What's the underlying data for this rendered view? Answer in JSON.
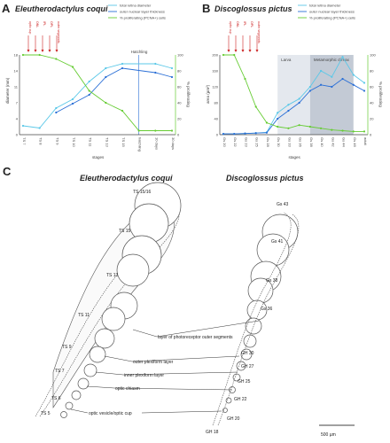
{
  "panels": {
    "a": {
      "letter": "A",
      "title": "Eleutherodactylus coqui"
    },
    "b": {
      "letter": "B",
      "title": "Discoglossus pictus"
    },
    "c": {
      "letter": "C",
      "title_left": "Eleutherodactylus coqui",
      "title_right": "Discoglossus pictus"
    }
  },
  "legend": {
    "items": [
      "total retina diameter",
      "outer nuclear layer thickness",
      "% proliferating (PCNA+) cells"
    ]
  },
  "colors": {
    "cyan": "#5bc8e8",
    "blue": "#2a6fd6",
    "green": "#66cc33",
    "red": "#cc2222",
    "shade1": "#e4e8ee",
    "shade2": "#c3cad5"
  },
  "chart_data": [
    {
      "type": "line",
      "title": "Eleutherodactylus coqui",
      "xlabel": "stages",
      "ylabel": "diameter (mm)",
      "y2label": "% proliferating",
      "ylim": [
        0,
        18
      ],
      "y2lim": [
        0,
        100
      ],
      "categories": [
        "TS 7",
        "TS 8",
        "TS 9",
        "TS 10",
        "TS 11",
        "TS 13",
        "TS 15",
        "hatchling",
        "10 days",
        "30 days"
      ],
      "series": [
        {
          "name": "total retina diameter",
          "axis": "left",
          "values": [
            2,
            1.5,
            6,
            8,
            12,
            15,
            16,
            null,
            16,
            15
          ]
        },
        {
          "name": "outer nuclear layer thickness",
          "axis": "left",
          "values": [
            null,
            null,
            5,
            7,
            9,
            13,
            15,
            null,
            14,
            13
          ]
        },
        {
          "name": "% proliferating (PCNA+) cells",
          "axis": "right",
          "values": [
            100,
            100,
            95,
            85,
            55,
            40,
            30,
            5,
            5,
            5
          ]
        }
      ],
      "annotations": [
        "Hatchling"
      ],
      "red_markers": [
        "optic cup",
        "ONL",
        "IPL",
        "OPL",
        "outer segments"
      ]
    },
    {
      "type": "line",
      "title": "Discoglossus pictus",
      "xlabel": "stages",
      "ylabel": "area (µm²)",
      "y2label": "% proliferating",
      "ylim": [
        0,
        200
      ],
      "y2lim": [
        0,
        100
      ],
      "categories": [
        "Gs 20",
        "Gs 22",
        "Gs 23",
        "Gs 25",
        "Gs 28",
        "Gs 30",
        "Gs 33",
        "Gs 36",
        "Gs 38",
        "Gs 40",
        "Gs 42",
        "Gs 44",
        "Gs 46",
        "adult"
      ],
      "series": [
        {
          "name": "total retina diameter",
          "axis": "left",
          "values": [
            2,
            2,
            3,
            4,
            6,
            55,
            75,
            90,
            120,
            160,
            145,
            195,
            150,
            130
          ]
        },
        {
          "name": "outer nuclear layer thickness",
          "axis": "left",
          "values": [
            2,
            2,
            3,
            4,
            5,
            40,
            60,
            80,
            110,
            125,
            120,
            140,
            125,
            110
          ]
        },
        {
          "name": "% proliferating (PCNA+) cells",
          "axis": "right",
          "values": [
            100,
            100,
            70,
            35,
            15,
            10,
            8,
            12,
            10,
            8,
            6,
            5,
            4,
            4
          ]
        }
      ],
      "annotations": [
        "Larva",
        "Metamorphic climax"
      ],
      "red_markers": [
        "optic cup",
        "ONL",
        "IPL",
        "OPL",
        "outer segments"
      ]
    }
  ],
  "diagram_c": {
    "left_labels": [
      "TS 15/16",
      "TS 15",
      "TS 13",
      "TS 11",
      "TS 9",
      "TS 7",
      "TS 6",
      "TS 5"
    ],
    "right_labels": [
      "Gs 43",
      "Gs 41",
      "Gs 38",
      "Gs 36",
      "GH 30",
      "GH 27",
      "GH 25",
      "GH 22",
      "GH 20",
      "GH 18"
    ],
    "layer_labels": [
      "layer of photoreceptor outer segments",
      "outer plexiform layer",
      "inner plexiform layer",
      "optic chiasm",
      "optic vesicle/optic cup"
    ],
    "scale_bar": "500 µm"
  }
}
